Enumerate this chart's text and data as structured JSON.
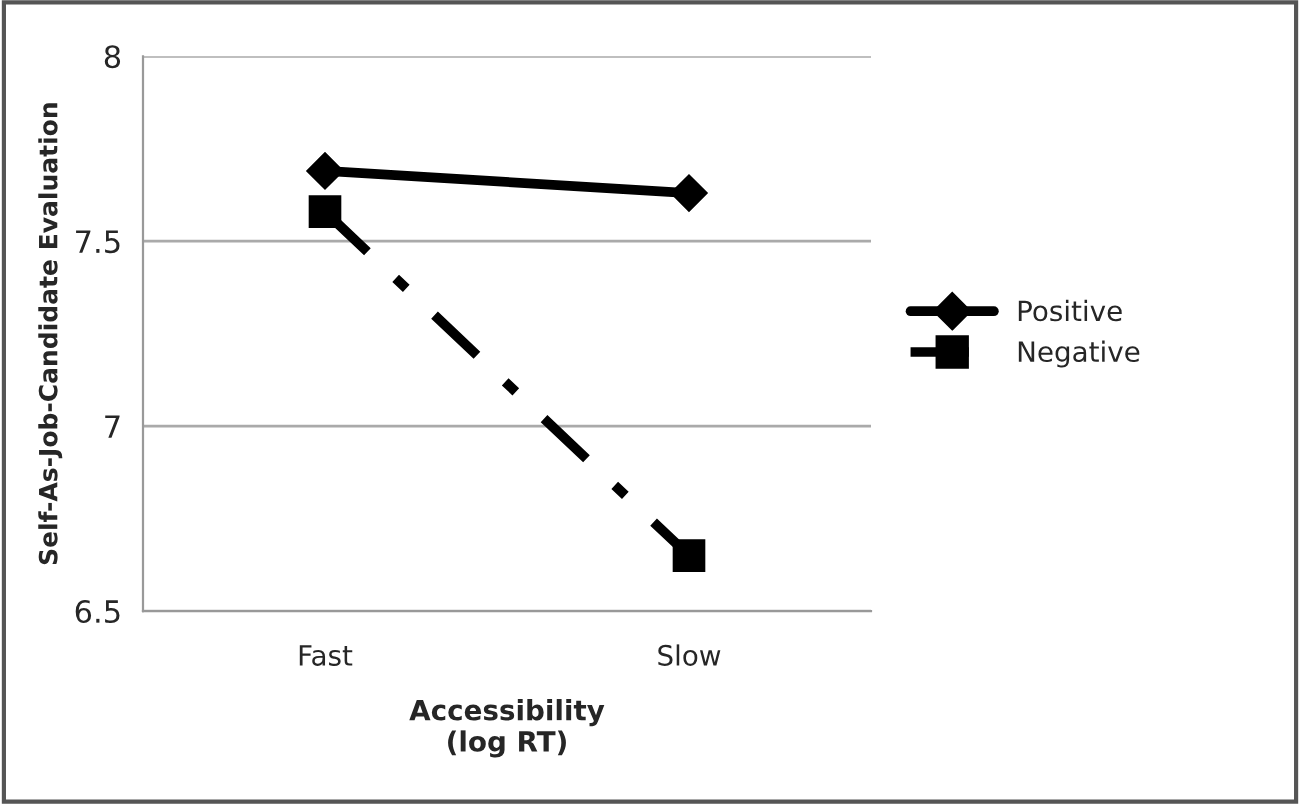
{
  "chart_data": {
    "type": "line",
    "xlabel": "Accessibility\n(log RT)",
    "ylabel": "Self-As-Job-Candidate Evaluation",
    "categories": [
      "Fast",
      "Slow"
    ],
    "series": [
      {
        "name": "Positive",
        "color": "#000000",
        "values": [
          7.69,
          7.63
        ],
        "marker": "diamond",
        "line_style": "solid"
      },
      {
        "name": "Negative",
        "color": "#000000",
        "values": [
          7.58,
          6.65
        ],
        "marker": "square",
        "line_style": "dashed"
      }
    ],
    "ylim": [
      6.5,
      8
    ],
    "yticks": [
      6.5,
      7,
      7.5,
      8
    ],
    "grid": "y",
    "legend": "right"
  }
}
